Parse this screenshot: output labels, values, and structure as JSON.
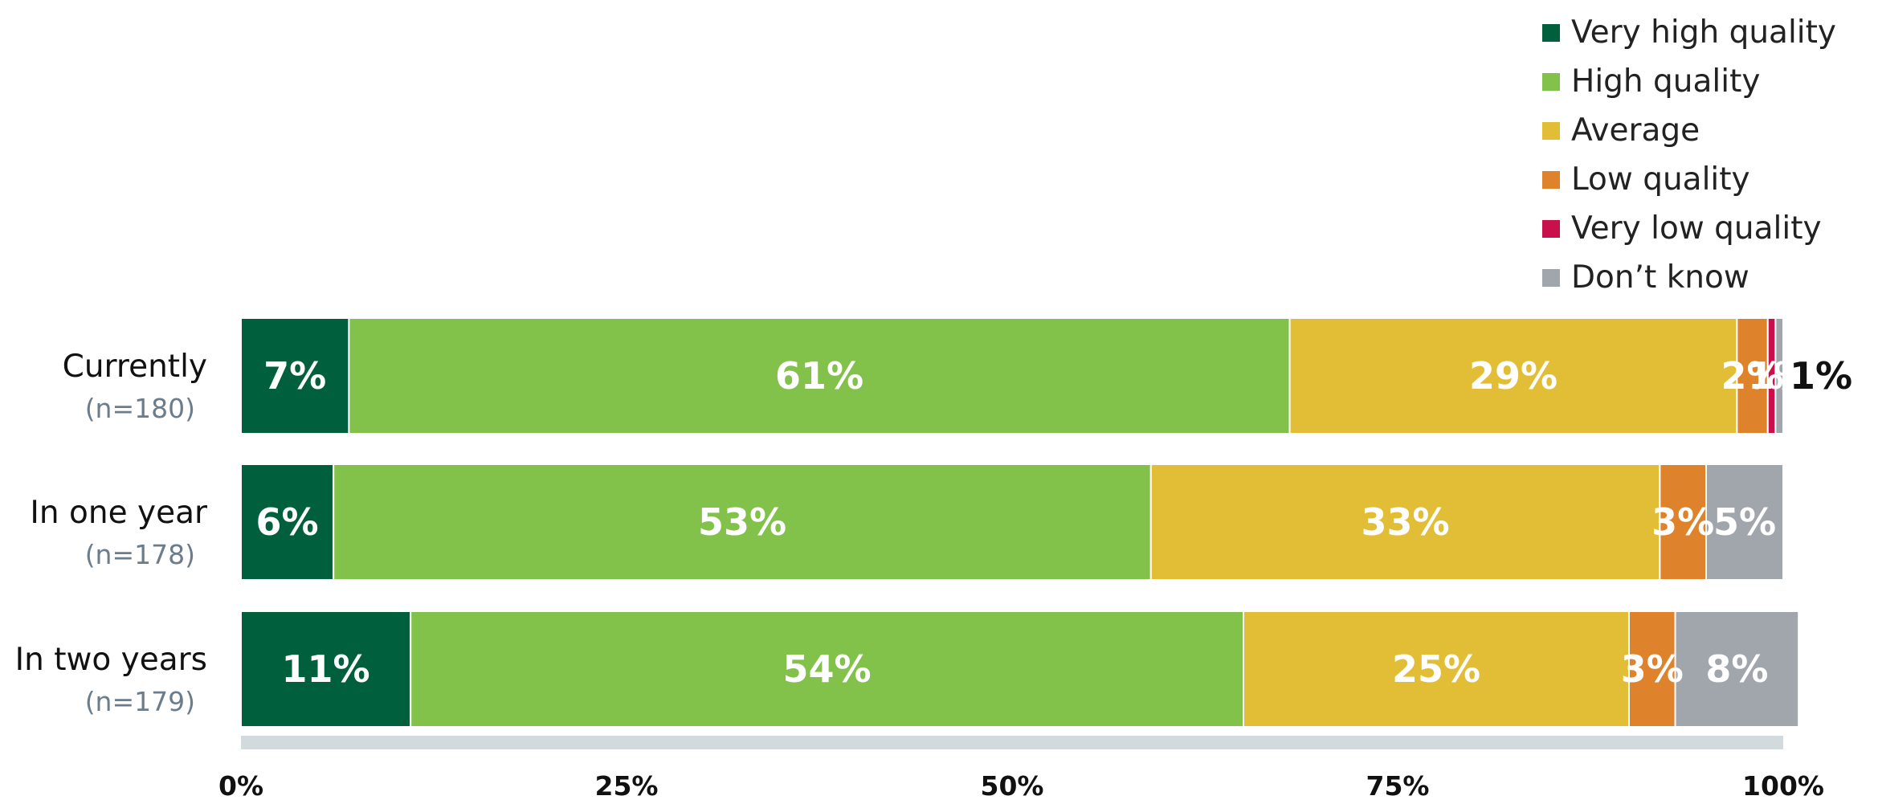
{
  "chart_data": {
    "type": "bar",
    "orientation": "horizontal",
    "stacked": true,
    "categories": [
      "Currently",
      "In one year",
      "In two years"
    ],
    "sample_sizes": [
      "(n=180)",
      "(n=178)",
      "(n=179)"
    ],
    "series": [
      {
        "name": "Very high quality",
        "color": "#00603d",
        "values": [
          7,
          6,
          11
        ],
        "labels": [
          "7%",
          "6%",
          "11%"
        ]
      },
      {
        "name": "High quality",
        "color": "#82c24a",
        "values": [
          61,
          53,
          54
        ],
        "labels": [
          "61%",
          "53%",
          "54%"
        ]
      },
      {
        "name": "Average",
        "color": "#e2be36",
        "values": [
          29,
          33,
          25
        ],
        "labels": [
          "29%",
          "33%",
          "25%"
        ]
      },
      {
        "name": "Low quality",
        "color": "#df822c",
        "values": [
          2,
          3,
          3
        ],
        "labels": [
          "2%",
          "3%",
          "3%"
        ]
      },
      {
        "name": "Very low quality",
        "color": "#c8104b",
        "values": [
          0.5,
          0,
          0
        ],
        "labels": [
          "",
          "",
          ""
        ]
      },
      {
        "name": "Don’t know",
        "color": "#a0a6ab",
        "values": [
          0.5,
          5,
          8
        ],
        "labels": [
          "1%",
          "5%",
          "8%"
        ]
      }
    ],
    "outside_label": {
      "category_index": 0,
      "text": "1%"
    },
    "xlim": [
      0,
      100
    ],
    "xticks": [
      "0%",
      "25%",
      "50%",
      "75%",
      "100%"
    ],
    "axis_line_color": "#d3dade",
    "legend_position": "top-right",
    "grid": false
  }
}
